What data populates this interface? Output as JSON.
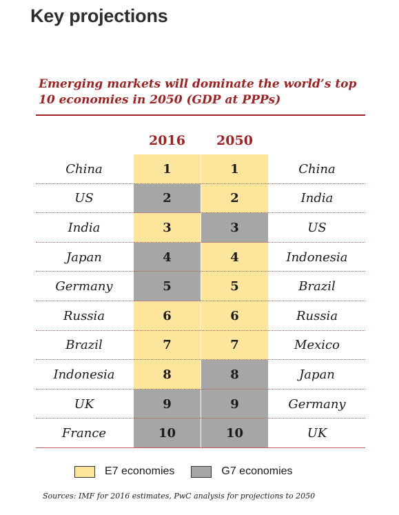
{
  "heading": "Key projections",
  "subtitle": "Emerging markets will dominate the world’s top 10 economies in 2050 (GDP at PPPs)",
  "columns": {
    "y2016": "2016",
    "y2050": "2050"
  },
  "colors": {
    "e7": "#fde59c",
    "g7": "#a6a6a6",
    "accent": "#a32020"
  },
  "rows": [
    {
      "rank": "1",
      "left": "China",
      "right": "China",
      "g2016": "E7",
      "g2050": "E7"
    },
    {
      "rank": "2",
      "left": "US",
      "right": "India",
      "g2016": "G7",
      "g2050": "E7"
    },
    {
      "rank": "3",
      "left": "India",
      "right": "US",
      "g2016": "E7",
      "g2050": "G7"
    },
    {
      "rank": "4",
      "left": "Japan",
      "right": "Indonesia",
      "g2016": "G7",
      "g2050": "E7"
    },
    {
      "rank": "5",
      "left": "Germany",
      "right": "Brazil",
      "g2016": "G7",
      "g2050": "E7"
    },
    {
      "rank": "6",
      "left": "Russia",
      "right": "Russia",
      "g2016": "E7",
      "g2050": "E7"
    },
    {
      "rank": "7",
      "left": "Brazil",
      "right": "Mexico",
      "g2016": "E7",
      "g2050": "E7"
    },
    {
      "rank": "8",
      "left": "Indonesia",
      "right": "Japan",
      "g2016": "E7",
      "g2050": "G7"
    },
    {
      "rank": "9",
      "left": "UK",
      "right": "Germany",
      "g2016": "G7",
      "g2050": "G7"
    },
    {
      "rank": "10",
      "left": "France",
      "right": "UK",
      "g2016": "G7",
      "g2050": "G7"
    }
  ],
  "legend": {
    "e7": "E7 economies",
    "g7": "G7 economies"
  },
  "source": "Sources: IMF for 2016 estimates, PwC analysis for projections to 2050"
}
